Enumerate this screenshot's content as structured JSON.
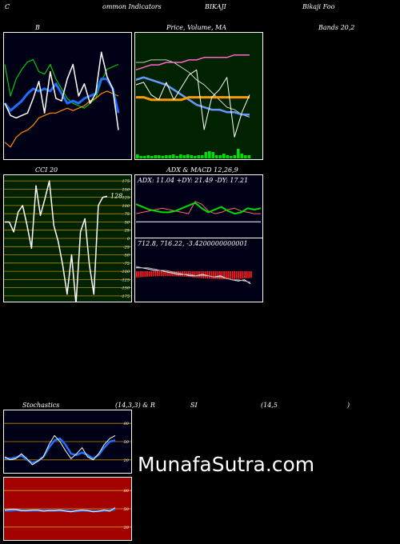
{
  "header": {
    "c1": "C",
    "c2": "ommon  Indicators",
    "c3": "BIKAJI",
    "c4": "Bikaji  Foo"
  },
  "panels": {
    "bb_title": "B",
    "price_title": "Price,  Volume,  MA",
    "bands_title": "Bands 20,2",
    "cci_title": "CCI 20",
    "adx_title": "ADX  & MACD 12,26,9",
    "adx_values": "ADX: 11.04  +DY: 21.49 -DY: 17.21",
    "macd_values": "712.8,   716.22,   -3.4200000000001",
    "stoch_title_a": "Stochastics",
    "stoch_title_b": "(14,3,3) & R",
    "stoch_title_c": "SI",
    "stoch_title_d": "(14,5",
    "stoch_title_e": ")"
  },
  "watermark": "MunafaSutra.com",
  "chart_data": [
    {
      "type": "line",
      "name": "bollinger",
      "title": "B",
      "series": [
        {
          "values": [
            118,
            105,
            112,
            116,
            119,
            120,
            115,
            114,
            118,
            112,
            108,
            104,
            102,
            101,
            100,
            102,
            104,
            111,
            116,
            117,
            118
          ]
        },
        {
          "values": [
            102,
            99,
            101,
            103,
            106,
            108,
            107,
            108,
            107,
            110,
            106,
            102,
            103,
            102,
            104,
            105,
            106,
            112,
            112,
            108,
            98
          ]
        },
        {
          "values": [
            86,
            84,
            88,
            90,
            91,
            93,
            96,
            97,
            98,
            98,
            99,
            100,
            99,
            100,
            101,
            103,
            104,
            106,
            107,
            106,
            105
          ]
        },
        {
          "values": [
            102,
            97,
            96,
            97,
            98,
            104,
            111,
            98,
            115,
            104,
            103,
            112,
            118,
            105,
            110,
            102,
            106,
            123,
            113,
            108,
            91
          ]
        }
      ],
      "ylim": [
        80,
        130
      ]
    },
    {
      "type": "line",
      "name": "price_volume_ma",
      "title": "Price,  Volume,  MA",
      "series": [
        {
          "values": [
            106,
            106,
            107,
            107,
            107,
            106,
            104,
            102,
            99,
            97,
            94,
            91,
            88,
            87,
            85,
            84
          ]
        },
        {
          "values": [
            103,
            104,
            105,
            105,
            106,
            106,
            106,
            107,
            107,
            108,
            108,
            108,
            108,
            109,
            109,
            109
          ]
        },
        {
          "values": [
            99,
            100,
            99,
            98,
            97,
            95,
            93,
            91,
            89,
            88,
            87,
            87,
            86,
            86,
            85,
            85
          ]
        },
        {
          "values": [
            92,
            92,
            91,
            91,
            91,
            91,
            91,
            92,
            92,
            92,
            92,
            92,
            92,
            92,
            92,
            92
          ]
        },
        {
          "values": [
            97,
            98,
            93,
            91,
            98,
            91,
            96,
            101,
            103,
            79,
            92,
            95,
            100,
            76,
            86,
            93
          ]
        }
      ],
      "volume": [
        5,
        3,
        3,
        4,
        3,
        4,
        4,
        3,
        4,
        4,
        5,
        3,
        5,
        4,
        5,
        4,
        3,
        4,
        4,
        8,
        9,
        8,
        4,
        4,
        6,
        4,
        3,
        4,
        12,
        6,
        4,
        4
      ]
    },
    {
      "type": "line",
      "name": "cci",
      "title": "CCI 20",
      "yticks": [
        175,
        150,
        125,
        100,
        75,
        50,
        25,
        0,
        -25,
        -50,
        -75,
        -100,
        -125,
        -150,
        -175
      ],
      "values": [
        50,
        50,
        20,
        80,
        100,
        40,
        -30,
        160,
        70,
        120,
        175,
        40,
        -10,
        -80,
        -170,
        -50,
        -200,
        20,
        60,
        -80,
        -170,
        100,
        125,
        128
      ],
      "last_label": "128",
      "ylim": [
        -185,
        185
      ]
    },
    {
      "type": "line",
      "name": "adx_macd",
      "title": "ADX  & MACD 12,26,9",
      "adx": [
        11,
        11,
        11,
        11,
        11,
        11,
        11,
        11,
        11,
        11,
        11,
        11,
        11,
        11,
        11,
        11,
        11,
        11,
        11,
        11
      ],
      "plus_di": [
        24,
        22,
        20,
        19,
        18,
        18,
        19,
        21,
        23,
        25,
        21,
        18,
        20,
        22,
        19,
        17,
        18,
        21,
        20,
        21
      ],
      "minus_di": [
        17,
        18,
        19,
        20,
        21,
        20,
        19,
        18,
        17,
        26,
        24,
        19,
        17,
        18,
        20,
        21,
        19,
        18,
        17,
        17
      ],
      "macd": [
        712.8
      ],
      "signal": [
        716.22
      ],
      "histogram": [
        -3.42
      ]
    },
    {
      "type": "line",
      "name": "stochastics",
      "title": "Stochastics (14,3,3)",
      "yticks": [
        80,
        50,
        20
      ],
      "k": [
        25,
        20,
        22,
        30,
        22,
        12,
        18,
        25,
        45,
        60,
        50,
        35,
        22,
        30,
        40,
        25,
        20,
        30,
        45,
        55,
        60
      ],
      "d": [
        22,
        22,
        24,
        27,
        20,
        15,
        18,
        25,
        40,
        52,
        55,
        45,
        30,
        28,
        32,
        28,
        22,
        28,
        40,
        50,
        52
      ],
      "ylim": [
        0,
        100
      ]
    },
    {
      "type": "line",
      "name": "rsi",
      "title": "RSI (14,5)",
      "yticks": [
        80,
        50,
        20
      ],
      "values": [
        48,
        49,
        49,
        47,
        47,
        48,
        48,
        46,
        47,
        47,
        48,
        46,
        45,
        47,
        48,
        47,
        45,
        46,
        48,
        46,
        52
      ],
      "smooth": [
        47,
        47,
        48,
        47,
        47,
        47,
        47,
        47,
        47,
        47,
        47,
        47,
        46,
        46,
        47,
        47,
        46,
        46,
        47,
        47,
        49
      ],
      "ylim": [
        0,
        100
      ]
    }
  ]
}
